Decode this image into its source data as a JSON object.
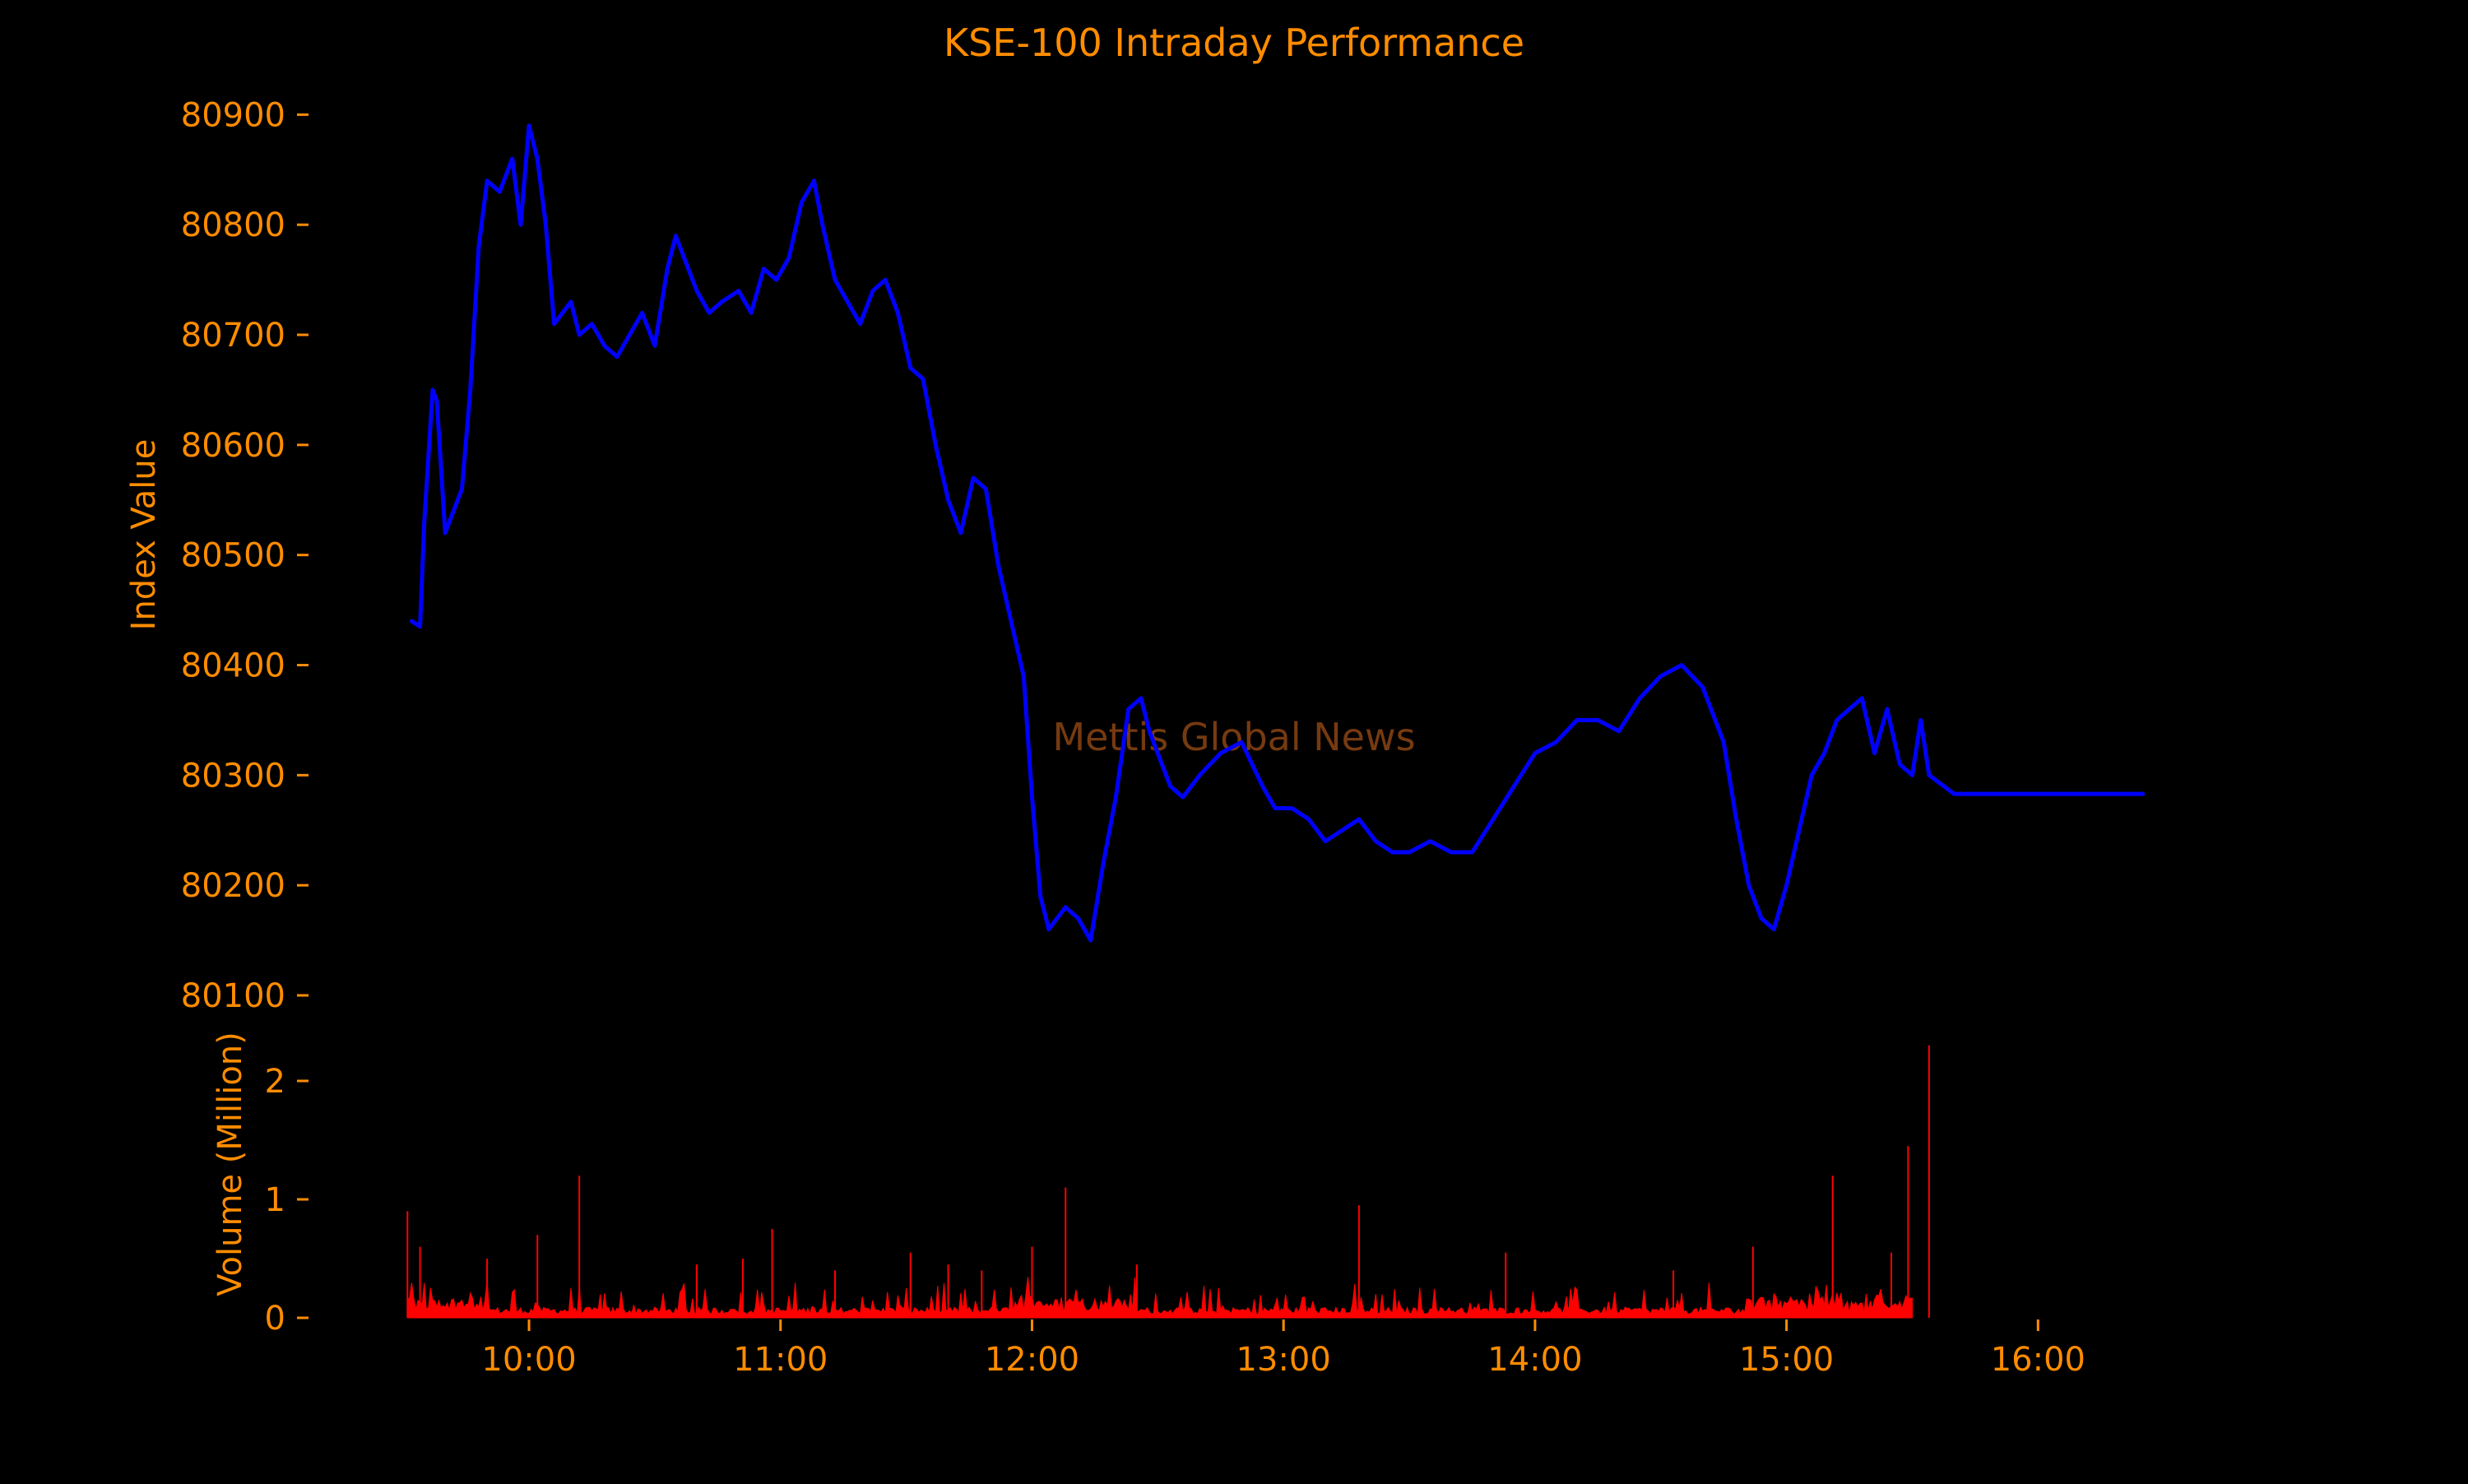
{
  "chart_data": {
    "type": "line",
    "title": "KSE-100 Intraday Performance",
    "watermark": "Mettis Global News",
    "colors": {
      "background": "#000000",
      "text": "#FF8C00",
      "index_line": "#0000FF",
      "volume_bars": "#FF0000",
      "watermark": "#8B4513"
    },
    "grid": false,
    "legend": "none",
    "x_axis": {
      "label": "",
      "range": [
        "09:28",
        "16:28"
      ],
      "ticks": [
        "10:00",
        "11:00",
        "12:00",
        "13:00",
        "14:00",
        "15:00",
        "16:00"
      ]
    },
    "index_panel": {
      "ylabel": "Index Value",
      "ylim": [
        80100,
        80910
      ],
      "yticks": [
        "80100",
        "80200",
        "80300",
        "80400",
        "80500",
        "80600",
        "80700",
        "80800",
        "80900"
      ],
      "series": [
        {
          "x": [
            "09:32",
            "09:34",
            "09:35",
            "09:37",
            "09:38",
            "09:40",
            "09:42",
            "09:44",
            "09:46",
            "09:48",
            "09:50",
            "09:53",
            "09:56",
            "09:58",
            "10:00",
            "10:02",
            "10:04",
            "10:06",
            "10:08",
            "10:10",
            "10:12",
            "10:15",
            "10:18",
            "10:21",
            "10:24",
            "10:27",
            "10:30",
            "10:33",
            "10:35",
            "10:38",
            "10:40",
            "10:43",
            "10:46",
            "10:50",
            "10:53",
            "10:56",
            "10:59",
            "11:02",
            "11:05",
            "11:08",
            "11:10",
            "11:13",
            "11:16",
            "11:19",
            "11:22",
            "11:25",
            "11:28",
            "11:31",
            "11:34",
            "11:37",
            "11:40",
            "11:43",
            "11:46",
            "11:49",
            "11:52",
            "11:55",
            "11:58",
            "12:00",
            "12:02",
            "12:04",
            "12:06",
            "12:08",
            "12:11",
            "12:14",
            "12:17",
            "12:20",
            "12:23",
            "12:26",
            "12:28",
            "12:30",
            "12:33",
            "12:36",
            "12:40",
            "12:45",
            "12:50",
            "12:55",
            "12:58",
            "13:02",
            "13:06",
            "13:10",
            "13:14",
            "13:18",
            "13:22",
            "13:26",
            "13:30",
            "13:35",
            "13:40",
            "13:45",
            "13:50",
            "13:55",
            "14:00",
            "14:05",
            "14:10",
            "14:15",
            "14:20",
            "14:25",
            "14:30",
            "14:35",
            "14:40",
            "14:45",
            "14:48",
            "14:51",
            "14:54",
            "14:57",
            "15:00",
            "15:03",
            "15:06",
            "15:09",
            "15:12",
            "15:15",
            "15:18",
            "15:21",
            "15:24",
            "15:27",
            "15:30",
            "15:32",
            "15:34",
            "15:40",
            "15:50",
            "16:00",
            "16:10",
            "16:20",
            "16:25"
          ],
          "y": [
            80440,
            80435,
            80530,
            80650,
            80640,
            80520,
            80540,
            80560,
            80650,
            80780,
            80840,
            80830,
            80860,
            80800,
            80890,
            80860,
            80800,
            80710,
            80720,
            80730,
            80700,
            80710,
            80690,
            80680,
            80700,
            80720,
            80690,
            80760,
            80790,
            80760,
            80740,
            80720,
            80730,
            80740,
            80720,
            80760,
            80750,
            80770,
            80820,
            80840,
            80800,
            80750,
            80730,
            80710,
            80740,
            80750,
            80720,
            80670,
            80660,
            80600,
            80550,
            80520,
            80570,
            80560,
            80490,
            80440,
            80390,
            80280,
            80190,
            80160,
            80170,
            80180,
            80170,
            80150,
            80220,
            80280,
            80360,
            80370,
            80340,
            80320,
            80290,
            80280,
            80300,
            80320,
            80330,
            80290,
            80270,
            80270,
            80260,
            80240,
            80250,
            80260,
            80240,
            80230,
            80230,
            80240,
            80230,
            80230,
            80260,
            80290,
            80320,
            80330,
            80350,
            80350,
            80340,
            80370,
            80390,
            80400,
            80380,
            80330,
            80260,
            80200,
            80170,
            80160,
            80200,
            80250,
            80300,
            80320,
            80350,
            80360,
            80370,
            80320,
            80360,
            80310,
            80300,
            80350,
            80300,
            80283,
            80283,
            80283,
            80283,
            80283,
            80283
          ]
        }
      ]
    },
    "volume_panel": {
      "ylabel": "Volume (Million)",
      "ylim": [
        0,
        2.5
      ],
      "yticks": [
        "0",
        "1",
        "2"
      ],
      "spikes": [
        {
          "x": "09:31",
          "v": 0.9
        },
        {
          "x": "09:34",
          "v": 0.6
        },
        {
          "x": "09:50",
          "v": 0.5
        },
        {
          "x": "10:02",
          "v": 0.7
        },
        {
          "x": "10:12",
          "v": 1.2
        },
        {
          "x": "10:40",
          "v": 0.45
        },
        {
          "x": "10:51",
          "v": 0.5
        },
        {
          "x": "10:58",
          "v": 0.75
        },
        {
          "x": "11:13",
          "v": 0.4
        },
        {
          "x": "11:31",
          "v": 0.55
        },
        {
          "x": "11:40",
          "v": 0.45
        },
        {
          "x": "11:48",
          "v": 0.4
        },
        {
          "x": "12:00",
          "v": 0.6
        },
        {
          "x": "12:08",
          "v": 1.1
        },
        {
          "x": "12:25",
          "v": 0.45
        },
        {
          "x": "13:18",
          "v": 0.95
        },
        {
          "x": "13:53",
          "v": 0.55
        },
        {
          "x": "14:33",
          "v": 0.4
        },
        {
          "x": "14:52",
          "v": 0.6
        },
        {
          "x": "15:11",
          "v": 1.2
        },
        {
          "x": "15:25",
          "v": 0.55
        },
        {
          "x": "15:29",
          "v": 1.45
        },
        {
          "x": "15:34",
          "v": 2.3
        }
      ]
    }
  }
}
